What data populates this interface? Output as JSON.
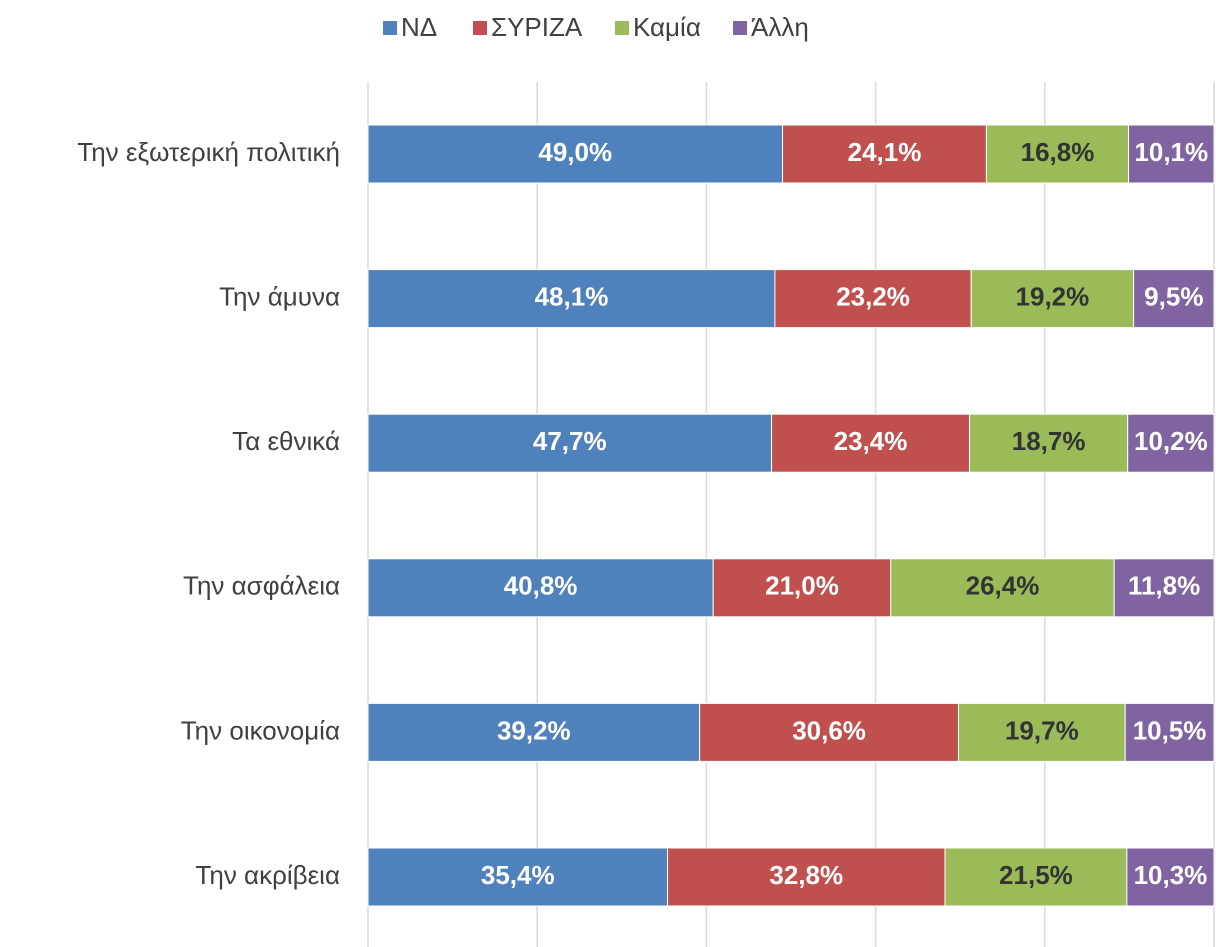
{
  "chart_data": {
    "type": "stacked-bar-horizontal",
    "categories": [
      "Την εξωτερική πολιτική",
      "Την άμυνα",
      "Τα εθνικά",
      "Την ασφάλεια",
      "Την οικονομία",
      "Την ακρίβεια"
    ],
    "series": [
      {
        "name": "ΝΔ",
        "color": "#4f81bd",
        "label_color": "#ffffff",
        "values": [
          49.0,
          48.1,
          47.7,
          40.8,
          39.2,
          35.4
        ],
        "value_labels": [
          "49,0%",
          "48,1%",
          "47,7%",
          "40,8%",
          "39,2%",
          "35,4%"
        ]
      },
      {
        "name": "ΣΥΡΙΖΑ",
        "color": "#c0504d",
        "label_color": "#ffffff",
        "values": [
          24.1,
          23.2,
          23.4,
          21.0,
          30.6,
          32.8
        ],
        "value_labels": [
          "24,1%",
          "23,2%",
          "23,4%",
          "21,0%",
          "30,6%",
          "32,8%"
        ]
      },
      {
        "name": "Καμία",
        "color": "#9bbb59",
        "label_color": "#333333",
        "values": [
          16.8,
          19.2,
          18.7,
          26.4,
          19.7,
          21.5
        ],
        "value_labels": [
          "16,8%",
          "19,2%",
          "18,7%",
          "26,4%",
          "19,7%",
          "21,5%"
        ]
      },
      {
        "name": "Άλλη",
        "color": "#8064a2",
        "label_color": "#ffffff",
        "values": [
          10.1,
          9.5,
          10.2,
          11.8,
          10.5,
          10.3
        ],
        "value_labels": [
          "10,1%",
          "9,5%",
          "10,2%",
          "11,8%",
          "10,5%",
          "10,3%"
        ]
      }
    ],
    "xlim": [
      0,
      100
    ],
    "xticks": [
      0,
      20,
      40,
      60,
      80,
      100
    ],
    "grid": true,
    "legend": "top"
  }
}
